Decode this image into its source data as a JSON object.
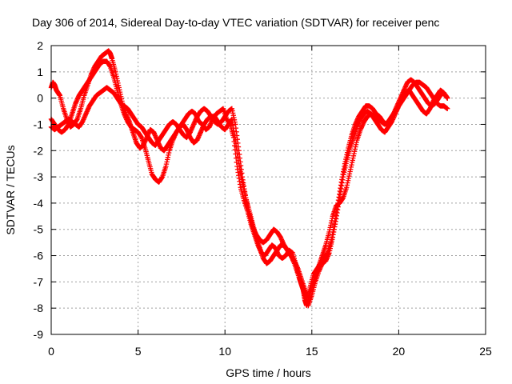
{
  "chart_data": {
    "type": "scatter",
    "title": "Day 306 of 2014, Sidereal Day-to-day VTEC variation (SDTVAR) for receiver penc",
    "xlabel": "GPS time / hours",
    "ylabel": "SDTVAR / TECUs",
    "xlim": [
      0,
      25
    ],
    "ylim": [
      -9,
      2
    ],
    "x_ticks": [
      "0",
      "5",
      "10",
      "15",
      "20",
      "25"
    ],
    "y_ticks": [
      "2",
      "1",
      "0",
      "-1",
      "-2",
      "-3",
      "-4",
      "-5",
      "-6",
      "-7",
      "-8",
      "-9"
    ],
    "grid": true,
    "marker": "+",
    "color": "#ff0000",
    "series": [
      {
        "x": [
          0.0,
          0.1,
          0.2,
          0.3,
          0.4,
          0.5,
          0.7,
          0.9,
          1.1,
          1.3,
          1.5,
          1.7,
          1.9,
          2.1,
          2.3,
          2.5,
          2.7,
          2.9,
          3.1,
          3.3,
          3.4,
          3.5,
          3.7,
          3.9,
          4.1,
          4.3,
          4.5,
          4.7,
          4.9,
          5.1,
          5.3,
          5.5,
          5.7,
          5.9,
          6.1,
          6.3,
          6.5,
          6.7,
          6.9,
          7.1,
          7.3,
          7.5,
          7.7,
          7.9,
          8.1,
          8.3,
          8.5,
          8.7,
          8.9,
          9.1,
          9.3,
          9.5,
          9.7,
          9.9,
          10.1,
          10.3,
          10.5,
          10.7,
          10.9,
          11.1,
          11.3,
          11.5,
          11.7,
          11.9,
          12.1,
          12.3,
          12.5,
          12.7,
          12.9,
          13.1,
          13.3,
          13.5,
          13.7,
          13.9,
          14.1,
          14.3,
          14.5,
          14.6,
          14.7,
          14.8,
          14.9,
          15.1,
          15.3,
          15.5,
          15.7,
          15.9,
          16.1,
          16.3,
          16.5,
          16.7,
          16.9,
          17.1,
          17.3,
          17.5,
          17.7,
          17.9,
          18.1,
          18.3,
          18.5,
          18.7,
          18.9,
          19.1,
          19.3,
          19.5,
          19.7,
          19.9,
          20.1,
          20.3,
          20.5,
          20.7,
          20.9,
          21.1,
          21.3,
          21.5,
          21.7,
          21.9,
          22.1,
          22.3,
          22.5,
          22.7,
          22.8
        ],
        "y": [
          0.4,
          0.6,
          0.5,
          0.3,
          0.2,
          0.1,
          -0.4,
          -0.8,
          -1.1,
          -1.0,
          -0.8,
          -0.4,
          0.1,
          0.5,
          0.9,
          1.2,
          1.4,
          1.6,
          1.7,
          1.8,
          1.7,
          1.5,
          1.0,
          0.4,
          -0.2,
          -0.6,
          -0.9,
          -1.3,
          -1.7,
          -1.9,
          -1.8,
          -1.5,
          -1.2,
          -1.3,
          -1.6,
          -1.9,
          -2.0,
          -1.8,
          -1.6,
          -1.4,
          -1.2,
          -1.0,
          -0.8,
          -0.6,
          -0.5,
          -0.6,
          -0.9,
          -1.0,
          -1.2,
          -1.1,
          -0.8,
          -0.6,
          -0.5,
          -0.4,
          -0.8,
          -1.0,
          -1.5,
          -2.6,
          -3.4,
          -3.9,
          -4.3,
          -4.8,
          -5.2,
          -5.6,
          -5.9,
          -6.0,
          -5.8,
          -5.6,
          -5.7,
          -6.0,
          -6.1,
          -6.0,
          -5.8,
          -5.9,
          -6.4,
          -6.9,
          -7.3,
          -7.7,
          -7.9,
          -7.7,
          -7.2,
          -6.7,
          -6.5,
          -6.3,
          -6.1,
          -5.9,
          -5.5,
          -4.8,
          -4.0,
          -3.2,
          -2.5,
          -1.9,
          -1.4,
          -1.0,
          -0.7,
          -0.5,
          -0.3,
          -0.3,
          -0.4,
          -0.6,
          -0.7,
          -0.9,
          -1.0,
          -0.8,
          -0.6,
          -0.3,
          0.0,
          0.3,
          0.6,
          0.7,
          0.6,
          0.4,
          0.2,
          0.0,
          -0.2,
          -0.3,
          -0.2,
          0.0,
          0.2,
          0.1,
          0.0
        ]
      },
      {
        "x": [
          0.0,
          0.2,
          0.4,
          0.6,
          0.8,
          1.0,
          1.2,
          1.4,
          1.6,
          1.8,
          2.0,
          2.2,
          2.4,
          2.6,
          2.8,
          3.0,
          3.2,
          3.4,
          3.6,
          3.8,
          4.0,
          4.2,
          4.4,
          4.6,
          4.8,
          5.0,
          5.2,
          5.4,
          5.6,
          5.8,
          6.0,
          6.2,
          6.4,
          6.6,
          6.8,
          7.0,
          7.2,
          7.4,
          7.6,
          7.8,
          8.0,
          8.2,
          8.4,
          8.6,
          8.8,
          9.0,
          9.2,
          9.4,
          9.6,
          9.8,
          10.0,
          10.2,
          10.4,
          10.6,
          10.8,
          11.0,
          11.2,
          11.4,
          11.6,
          11.8,
          12.0,
          12.2,
          12.4,
          12.6,
          12.8,
          13.0,
          13.2,
          13.4,
          13.6,
          13.8,
          14.0,
          14.2,
          14.4,
          14.6,
          14.8,
          15.0,
          15.2,
          15.4,
          15.6,
          15.8,
          16.0,
          16.2,
          16.4,
          16.6,
          16.8,
          17.0,
          17.2,
          17.4,
          17.6,
          17.8,
          18.0,
          18.2,
          18.4,
          18.6,
          18.8,
          19.0,
          19.2,
          19.4,
          19.6,
          19.8,
          20.0,
          20.2,
          20.4,
          20.6,
          20.8,
          21.0,
          21.2,
          21.4,
          21.6,
          21.8,
          22.0,
          22.2,
          22.4,
          22.6,
          22.8
        ],
        "y": [
          -0.8,
          -1.0,
          -1.2,
          -1.3,
          -1.2,
          -1.0,
          -0.6,
          -0.2,
          0.1,
          0.3,
          0.5,
          0.7,
          0.9,
          1.1,
          1.3,
          1.4,
          1.4,
          1.2,
          0.8,
          0.3,
          -0.2,
          -0.6,
          -0.9,
          -1.1,
          -1.2,
          -1.3,
          -1.5,
          -1.9,
          -2.4,
          -2.9,
          -3.1,
          -3.2,
          -3.0,
          -2.6,
          -2.0,
          -1.6,
          -1.3,
          -1.1,
          -1.0,
          -1.2,
          -1.5,
          -1.7,
          -1.6,
          -1.3,
          -1.0,
          -0.8,
          -0.7,
          -0.7,
          -0.9,
          -1.1,
          -1.2,
          -1.0,
          -0.8,
          -1.6,
          -2.5,
          -3.2,
          -3.8,
          -4.3,
          -4.8,
          -5.3,
          -5.7,
          -6.1,
          -6.3,
          -6.2,
          -6.0,
          -5.8,
          -5.6,
          -5.6,
          -5.8,
          -6.0,
          -6.3,
          -6.7,
          -7.1,
          -7.5,
          -7.9,
          -7.5,
          -7.0,
          -6.6,
          -6.3,
          -6.2,
          -5.9,
          -5.3,
          -4.6,
          -3.8,
          -3.0,
          -2.4,
          -1.9,
          -1.5,
          -1.1,
          -0.8,
          -0.6,
          -0.5,
          -0.6,
          -0.8,
          -1.0,
          -1.2,
          -1.3,
          -1.1,
          -0.9,
          -0.6,
          -0.3,
          0.0,
          0.2,
          0.3,
          0.1,
          -0.1,
          -0.3,
          -0.5,
          -0.6,
          -0.4,
          -0.1,
          0.1,
          0.3,
          0.2,
          0.0
        ]
      },
      {
        "x": [
          0.0,
          0.2,
          0.4,
          0.6,
          0.8,
          1.0,
          1.2,
          1.4,
          1.6,
          1.8,
          2.0,
          2.2,
          2.4,
          2.6,
          2.8,
          3.0,
          3.2,
          3.4,
          3.6,
          3.8,
          4.0,
          4.2,
          4.4,
          4.6,
          4.8,
          5.0,
          5.2,
          5.4,
          5.6,
          5.8,
          6.0,
          6.2,
          6.4,
          6.6,
          6.8,
          7.0,
          7.2,
          7.4,
          7.6,
          7.8,
          8.0,
          8.2,
          8.4,
          8.6,
          8.8,
          9.0,
          9.2,
          9.4,
          9.6,
          9.8,
          10.0,
          10.2,
          10.4,
          10.6,
          10.8,
          11.0,
          11.2,
          11.4,
          11.6,
          11.8,
          12.0,
          12.2,
          12.4,
          12.6,
          12.8,
          13.0,
          13.2,
          13.4,
          13.6,
          13.8,
          14.0,
          14.2,
          14.4,
          14.6,
          14.8,
          15.0,
          15.2,
          15.4,
          15.6,
          15.8,
          16.0,
          16.2,
          16.4,
          16.6,
          16.8,
          17.0,
          17.2,
          17.4,
          17.6,
          17.8,
          18.0,
          18.2,
          18.4,
          18.6,
          18.8,
          19.0,
          19.2,
          19.4,
          19.6,
          19.8,
          20.0,
          20.2,
          20.4,
          20.6,
          20.8,
          21.0,
          21.2,
          21.4,
          21.6,
          21.8,
          22.0,
          22.2,
          22.4,
          22.6,
          22.8
        ],
        "y": [
          -1.1,
          -1.2,
          -1.1,
          -1.0,
          -0.9,
          -0.8,
          -0.9,
          -1.0,
          -1.1,
          -0.9,
          -0.6,
          -0.3,
          -0.1,
          0.1,
          0.2,
          0.3,
          0.4,
          0.3,
          0.2,
          0.0,
          -0.2,
          -0.3,
          -0.4,
          -0.6,
          -0.8,
          -1.0,
          -1.1,
          -1.3,
          -1.5,
          -1.7,
          -1.8,
          -1.6,
          -1.4,
          -1.2,
          -1.0,
          -0.9,
          -1.0,
          -1.2,
          -1.4,
          -1.5,
          -1.3,
          -1.0,
          -0.7,
          -0.5,
          -0.4,
          -0.5,
          -0.7,
          -0.9,
          -1.0,
          -0.9,
          -0.7,
          -0.5,
          -0.4,
          -1.0,
          -2.0,
          -3.0,
          -3.8,
          -4.4,
          -4.9,
          -5.2,
          -5.4,
          -5.5,
          -5.4,
          -5.2,
          -5.0,
          -5.1,
          -5.3,
          -5.6,
          -5.8,
          -6.0,
          -6.2,
          -6.5,
          -6.9,
          -7.3,
          -7.6,
          -7.2,
          -6.8,
          -6.4,
          -6.0,
          -5.6,
          -5.1,
          -4.5,
          -4.1,
          -4.0,
          -3.8,
          -3.4,
          -2.8,
          -2.2,
          -1.6,
          -1.2,
          -0.9,
          -0.7,
          -0.6,
          -0.7,
          -0.8,
          -0.9,
          -1.0,
          -0.9,
          -0.7,
          -0.5,
          -0.3,
          -0.1,
          0.1,
          0.3,
          0.5,
          0.6,
          0.6,
          0.5,
          0.4,
          0.2,
          0.0,
          -0.2,
          -0.3,
          -0.3,
          -0.4
        ]
      }
    ]
  }
}
